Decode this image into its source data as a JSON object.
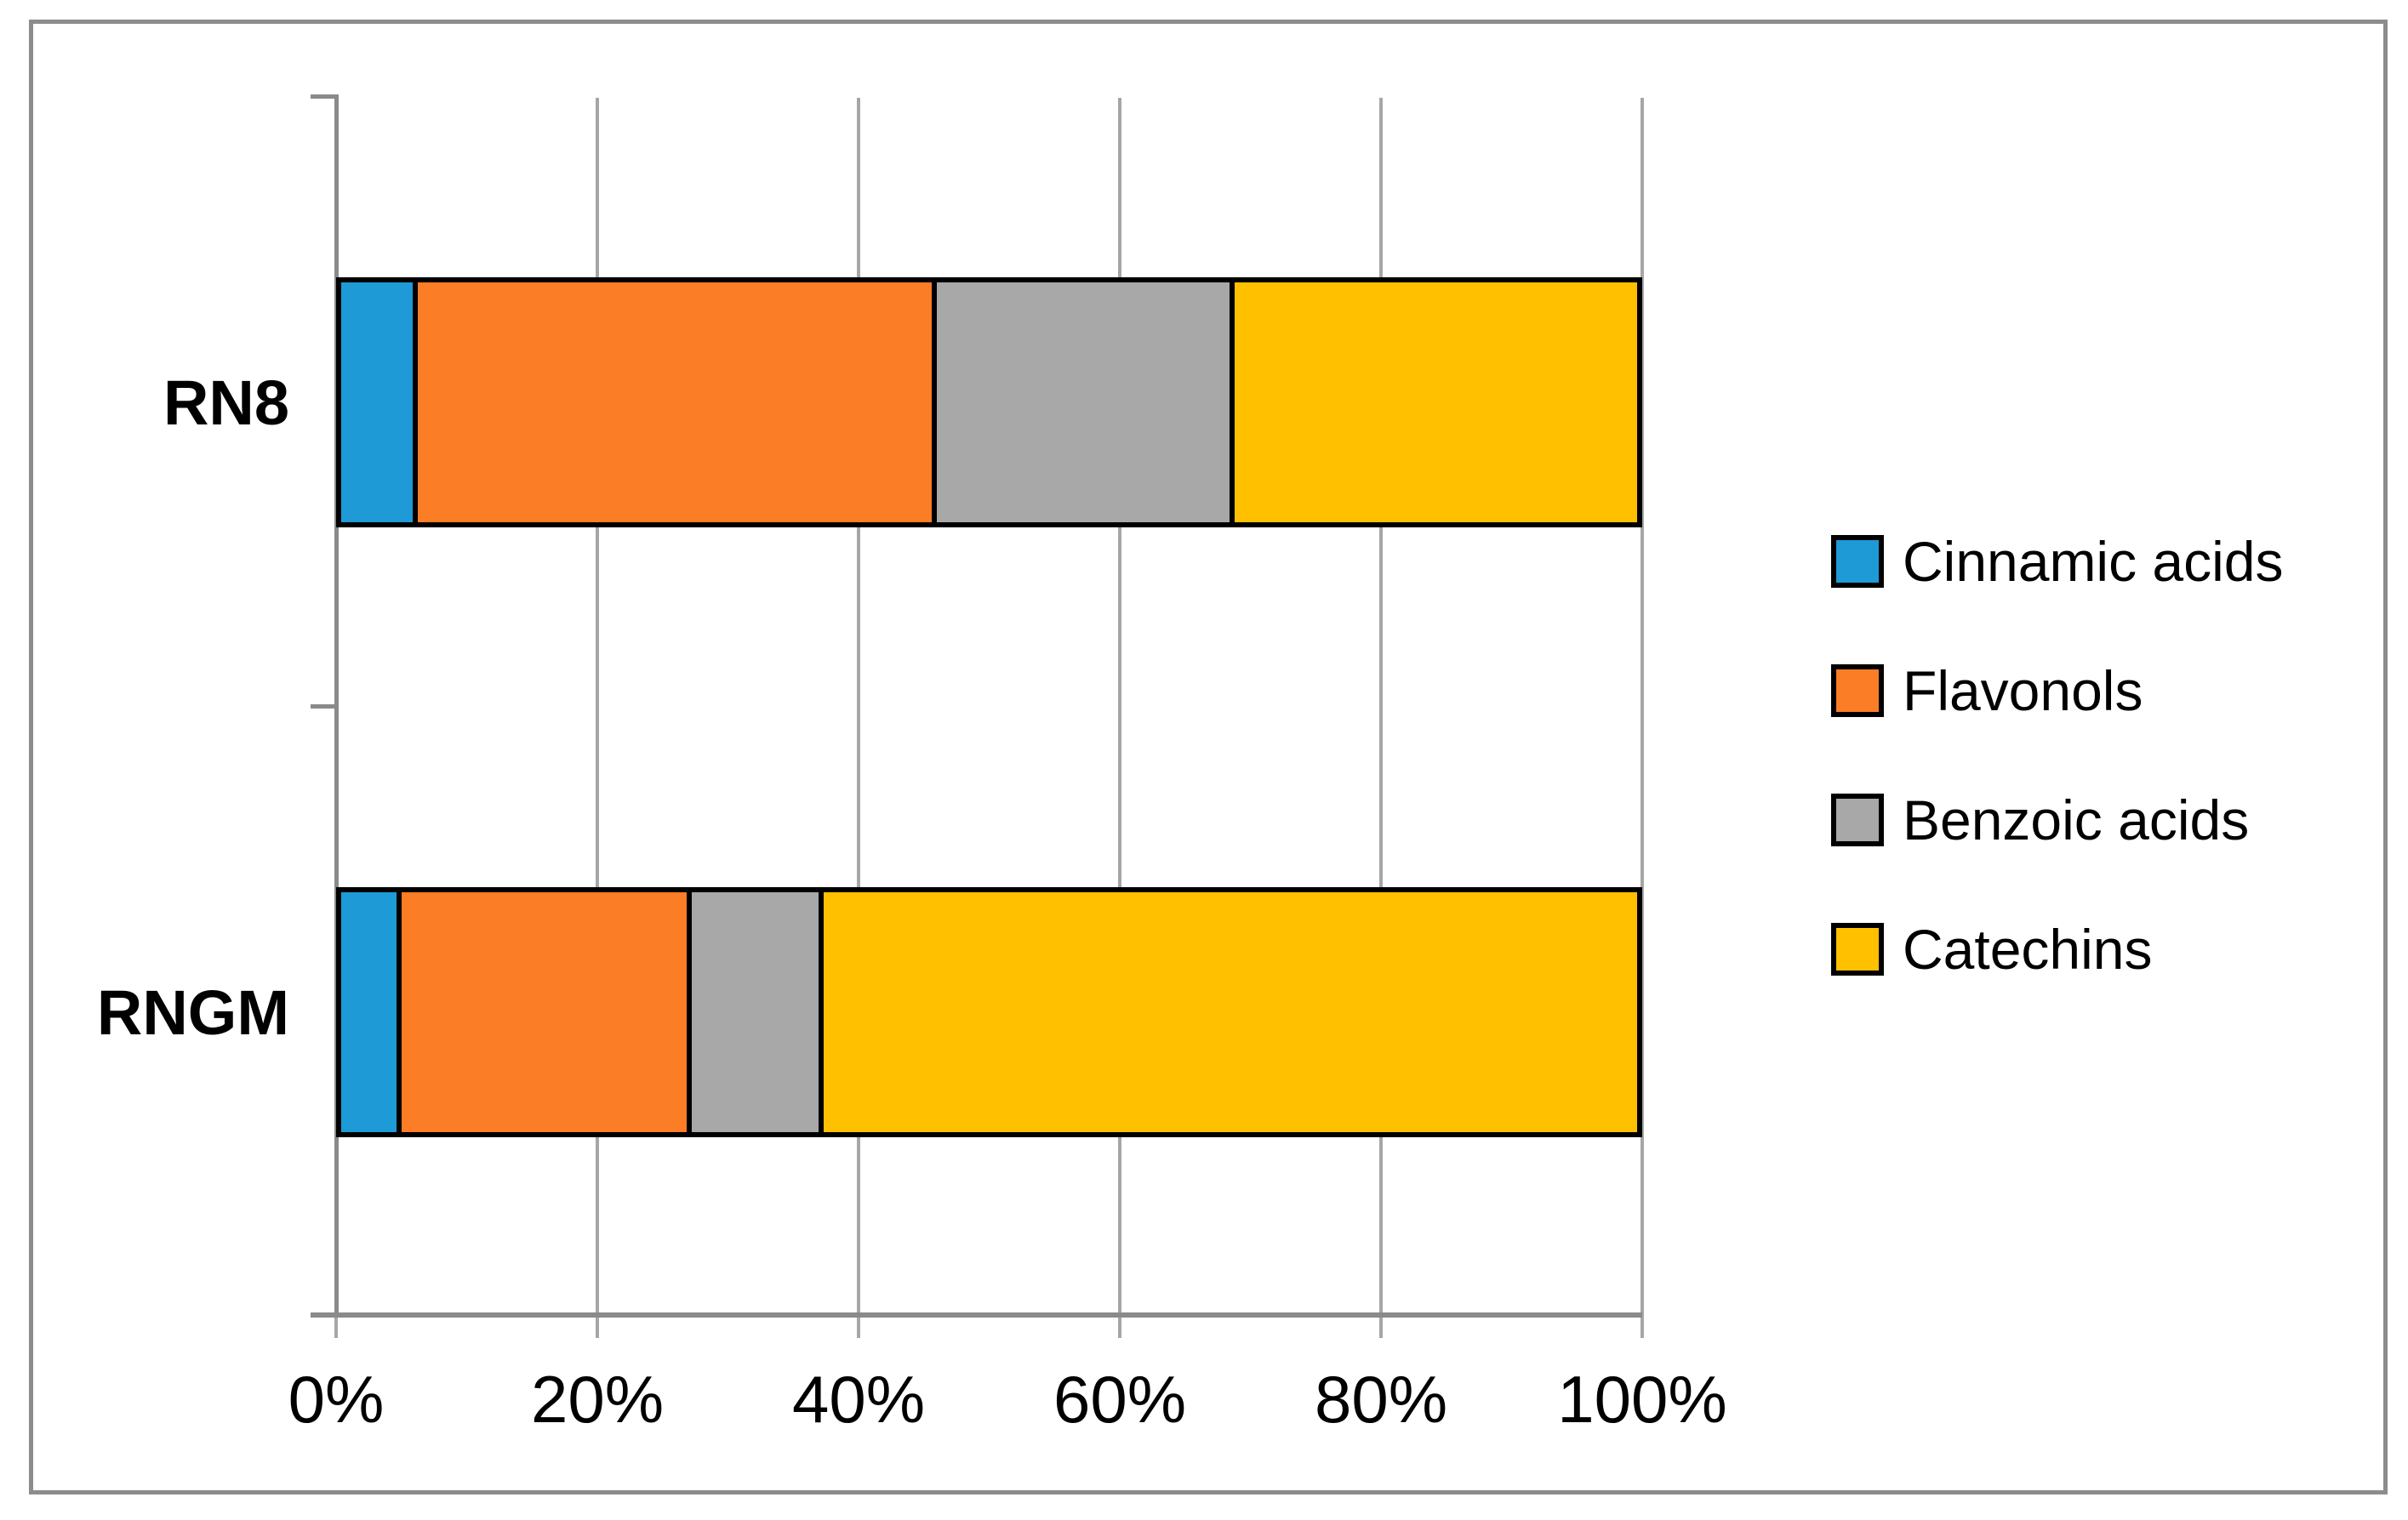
{
  "chart_data": {
    "type": "bar",
    "orientation": "horizontal",
    "stacked": true,
    "stack_total": "100%",
    "title": "",
    "xlabel": "",
    "ylabel": "",
    "x_axis_range": [
      0,
      100
    ],
    "x_tick_labels": [
      "0%",
      "20%",
      "40%",
      "60%",
      "80%",
      "100%"
    ],
    "grid": true,
    "legend_position": "right",
    "categories": [
      "RN8",
      "RNGM"
    ],
    "series": [
      {
        "name": "Cinnamic acids",
        "color": "#1E9AD7",
        "values": [
          5.6,
          4.3
        ]
      },
      {
        "name": "Flavonols",
        "color": "#FB7D26",
        "values": [
          40.1,
          22.3
        ]
      },
      {
        "name": "Benzoic acids",
        "color": "#A8A8A8",
        "values": [
          22.9,
          9.9
        ]
      },
      {
        "name": "Catechins",
        "color": "#FFC000",
        "values": [
          31.4,
          63.5
        ]
      }
    ]
  },
  "style_colors": {
    "gridline": "#A6A6A6",
    "axis": "#8A8A8A",
    "frame": "#8C8C8C",
    "bar_border": "#000000",
    "text": "#000000",
    "background": "#FFFFFF"
  }
}
